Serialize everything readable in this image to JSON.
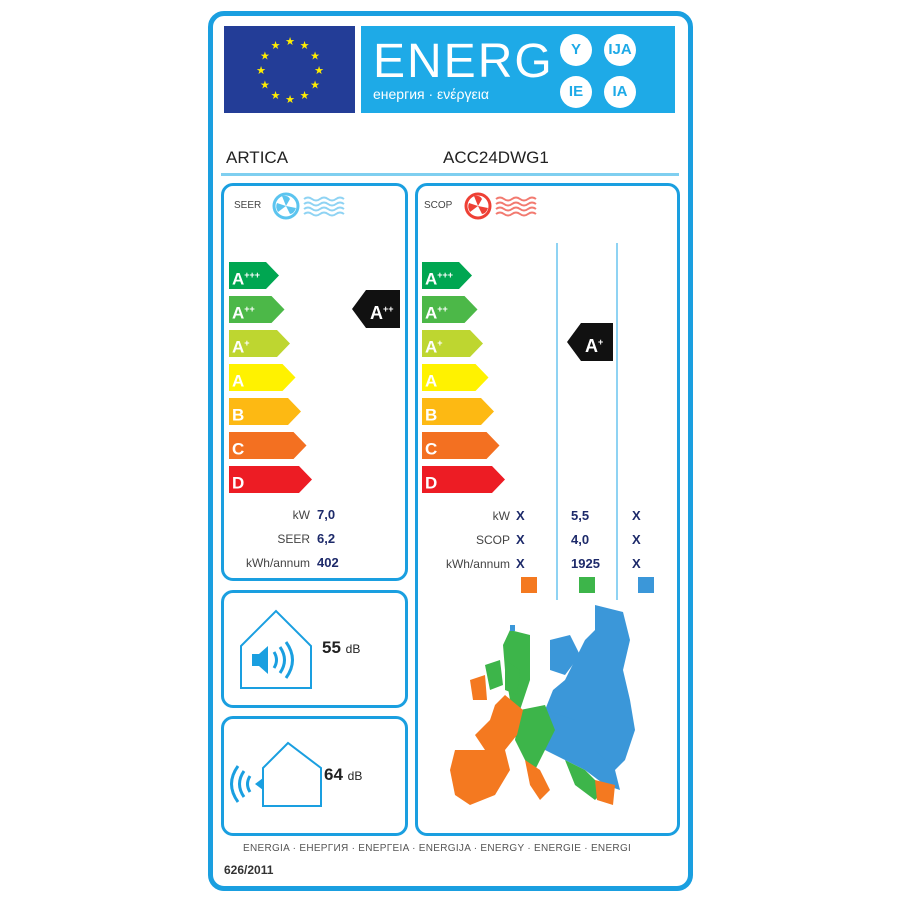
{
  "header": {
    "energy_word": "ENERG",
    "energy_subtitle": "енергия · ενέργεια",
    "suffixes": [
      "Y",
      "IJA",
      "IE",
      "IA"
    ]
  },
  "brand": "ARTICA",
  "model": "ACC24DWG1",
  "scale": [
    {
      "letter": "A",
      "plus": "+++",
      "color": "#00a651"
    },
    {
      "letter": "A",
      "plus": "++",
      "color": "#4cb848"
    },
    {
      "letter": "A",
      "plus": "+",
      "color": "#bed630"
    },
    {
      "letter": "A",
      "plus": "",
      "color": "#fff200"
    },
    {
      "letter": "B",
      "plus": "",
      "color": "#fdb913"
    },
    {
      "letter": "C",
      "plus": "",
      "color": "#f37021"
    },
    {
      "letter": "D",
      "plus": "",
      "color": "#ed1c24"
    }
  ],
  "cooling": {
    "label": "SEER",
    "class_letter": "A",
    "class_plus": "++",
    "class_index": 1,
    "rows": [
      {
        "label": "kW",
        "value": "7,0"
      },
      {
        "label": "SEER",
        "value": "6,2"
      },
      {
        "label": "kWh/annum",
        "value": "402"
      }
    ]
  },
  "heating": {
    "label": "SCOP",
    "class_letter": "A",
    "class_plus": "+",
    "class_index": 2,
    "rows": [
      {
        "label": "kW",
        "values": [
          "X",
          "5,5",
          "X"
        ]
      },
      {
        "label": "SCOP",
        "values": [
          "X",
          "4,0",
          "X"
        ]
      },
      {
        "label": "kWh/annum",
        "values": [
          "X",
          "1925",
          "X"
        ]
      }
    ],
    "zone_colors": [
      "#f47920",
      "#3db54a",
      "#3b97d9"
    ]
  },
  "noise_indoor": {
    "value": "55",
    "unit": "dB"
  },
  "noise_outdoor": {
    "value": "64",
    "unit": "dB"
  },
  "footer": "ENERGIA · ЕНЕРГИЯ · ΕΝΕΡΓΕΙΑ · ENERGIJA · ENERGY · ENERGIE · ENERGI",
  "regulation": "626/2011"
}
